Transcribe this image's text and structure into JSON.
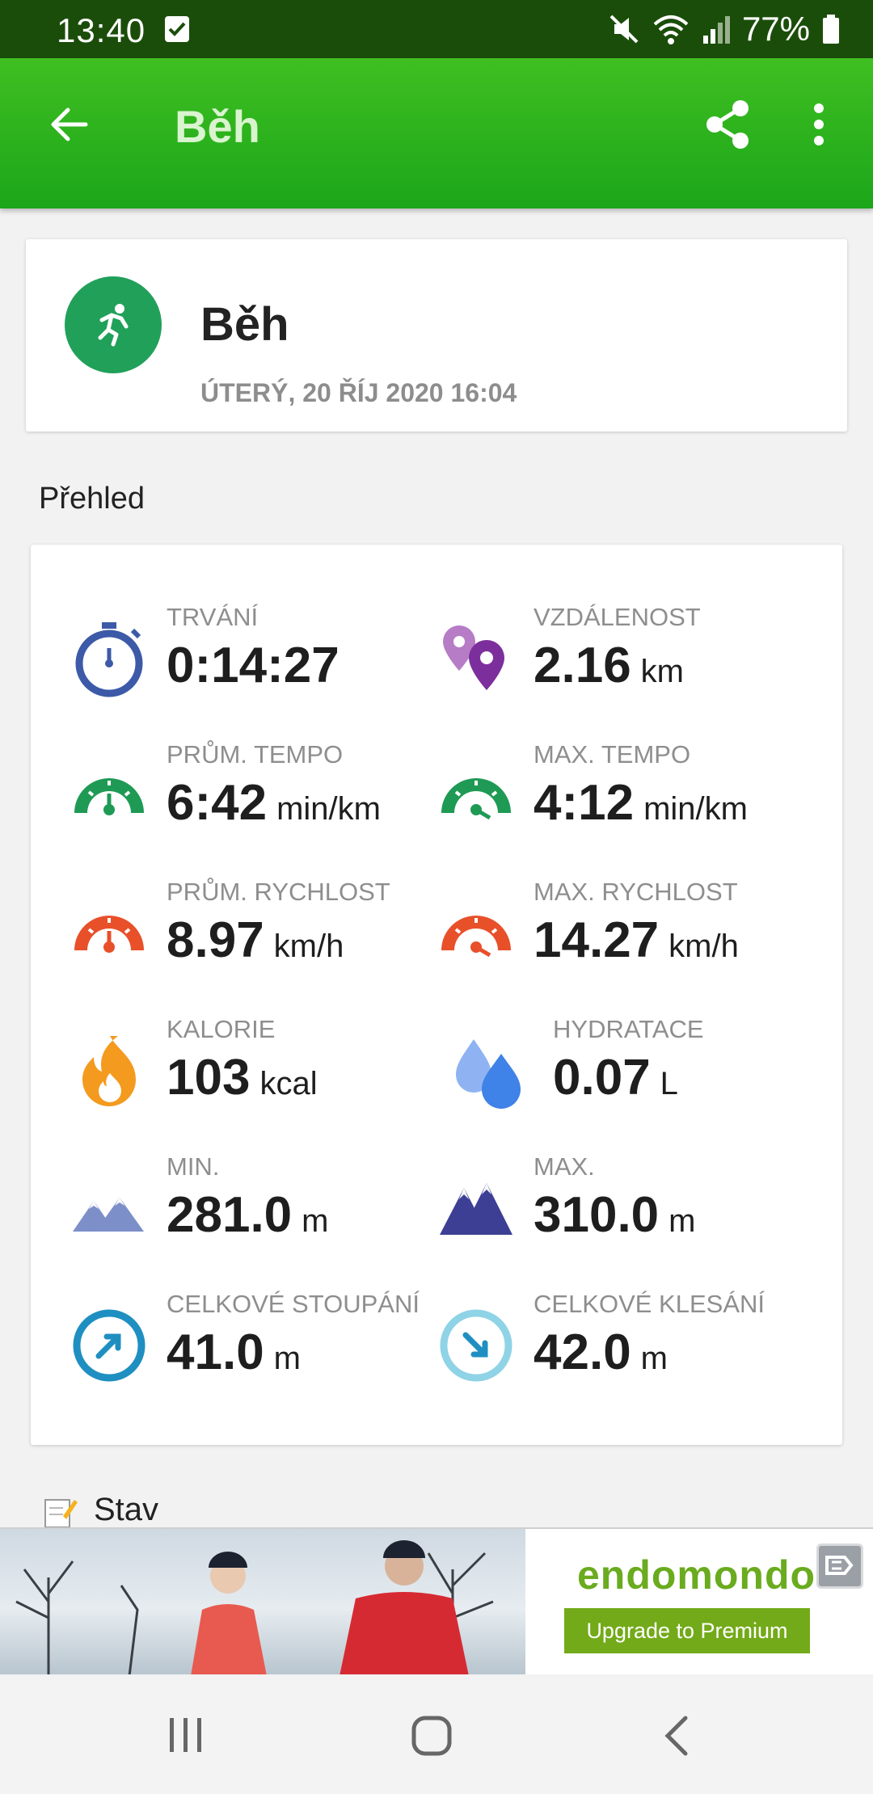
{
  "status_bar": {
    "time": "13:40",
    "battery": "77%"
  },
  "app_bar": {
    "title": "Běh"
  },
  "header": {
    "sport": "Běh",
    "date": "ÚTERÝ, 20 ŘÍJ 2020 16:04"
  },
  "overview": {
    "title": "Přehled",
    "stats": [
      {
        "label": "TRVÁNÍ",
        "value": "0:14:27",
        "unit": ""
      },
      {
        "label": "VZDÁLENOST",
        "value": "2.16",
        "unit": "km"
      },
      {
        "label": "PRŮM. TEMPO",
        "value": "6:42",
        "unit": "min/km"
      },
      {
        "label": "MAX. TEMPO",
        "value": "4:12",
        "unit": "min/km"
      },
      {
        "label": "PRŮM. RYCHLOST",
        "value": "8.97",
        "unit": "km/h"
      },
      {
        "label": "MAX. RYCHLOST",
        "value": "14.27",
        "unit": "km/h"
      },
      {
        "label": "KALORIE",
        "value": "103",
        "unit": "kcal"
      },
      {
        "label": "HYDRATACE",
        "value": "0.07",
        "unit": "L"
      },
      {
        "label": "MIN.",
        "value": "281.0",
        "unit": "m"
      },
      {
        "label": "MAX.",
        "value": "310.0",
        "unit": "m"
      },
      {
        "label": "CELKOVÉ STOUPÁNÍ",
        "value": "41.0",
        "unit": "m"
      },
      {
        "label": "CELKOVÉ KLESÁNÍ",
        "value": "42.0",
        "unit": "m"
      }
    ]
  },
  "status_section": {
    "title": "Stav"
  },
  "ad": {
    "brand": "endomondo",
    "button": "Upgrade to Premium"
  },
  "colors": {
    "appbar": "#2fb41e",
    "statusbar": "#1b4d0a",
    "sport_circle": "#21a05a",
    "ad_green": "#73aa19"
  }
}
